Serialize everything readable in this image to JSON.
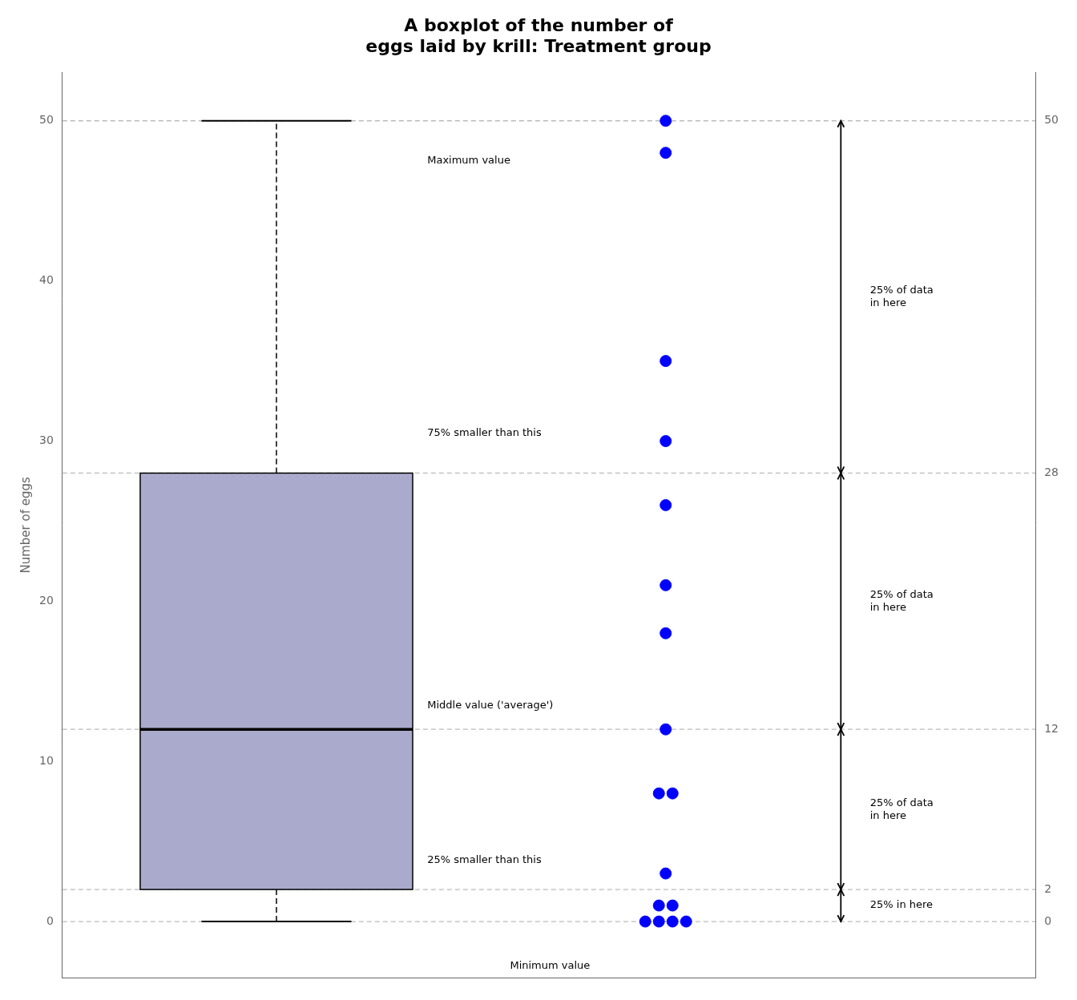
{
  "chart_data": {
    "type": "box",
    "title": "A boxplot of the number of\neggs laid by krill: Treatment group",
    "y_label": "Number of eggs",
    "q1": 2,
    "median": 12,
    "q3": 28,
    "whisker_low": 0,
    "whisker_high": 50,
    "color": "#AAAACC",
    "points": {
      "color": "blue",
      "values": [
        50,
        48,
        35,
        30,
        26,
        21,
        18,
        12,
        8,
        8,
        3,
        1,
        1,
        0,
        0,
        0,
        0
      ]
    },
    "ylim": [
      -3.5,
      53
    ],
    "yticks": [
      0,
      10,
      20,
      30,
      40,
      50
    ],
    "y2lim": [
      -3.5,
      53
    ],
    "y2ticks": [
      0,
      2,
      12,
      28,
      50
    ],
    "hlines": [
      0,
      2,
      12,
      28,
      50
    ],
    "annotations": [
      {
        "text": "Maximum value",
        "y": 47.5
      },
      {
        "text": "75% smaller than this",
        "y": 30.5
      },
      {
        "text": "Middle value ('average')",
        "y": 13.5
      },
      {
        "text": "25% smaller than this",
        "y": 3.8
      },
      {
        "text": "Minimum value",
        "y": -2.8
      }
    ],
    "ranges": [
      {
        "from": 28,
        "to": 50,
        "label": "25% of data\nin here"
      },
      {
        "from": 12,
        "to": 28,
        "label": "25% of data\nin here"
      },
      {
        "from": 2,
        "to": 12,
        "label": "25% of data\nin here"
      },
      {
        "from": 0,
        "to": 2,
        "label": "25% in here"
      }
    ],
    "grid": false,
    "tick_labels": "y"
  }
}
